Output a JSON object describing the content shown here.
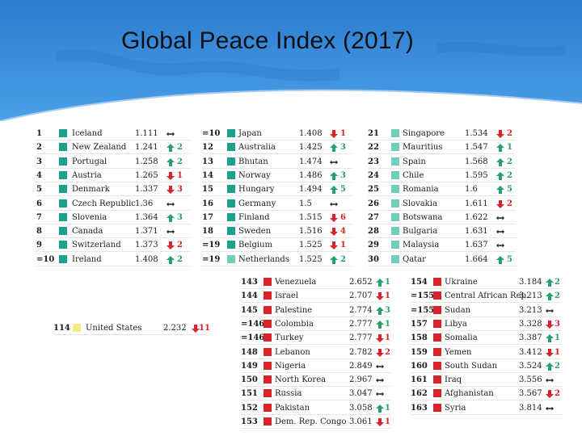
{
  "slide": {
    "title": "Global Peace Index (2017)"
  },
  "colors": {
    "banner": "#2f7fd0",
    "teal_dark": "#1aa08e",
    "teal_light": "#6fcdb9",
    "yellow": "#f7ea80",
    "red": "#d8232a",
    "arrow_up": "#28a06a",
    "arrow_down": "#d8232a",
    "arrow_flat": "#222222"
  },
  "tables": [
    {
      "id": "col1",
      "rows": [
        {
          "rank": "1",
          "country": "Iceland",
          "score": "1.111",
          "dir": "flat",
          "change": "",
          "color": "teal_dark"
        },
        {
          "rank": "2",
          "country": "New Zealand",
          "score": "1.241",
          "dir": "up",
          "change": "2",
          "color": "teal_dark"
        },
        {
          "rank": "3",
          "country": "Portugal",
          "score": "1.258",
          "dir": "up",
          "change": "2",
          "color": "teal_dark"
        },
        {
          "rank": "4",
          "country": "Austria",
          "score": "1.265",
          "dir": "down",
          "change": "1",
          "color": "teal_dark"
        },
        {
          "rank": "5",
          "country": "Denmark",
          "score": "1.337",
          "dir": "down",
          "change": "3",
          "color": "teal_dark"
        },
        {
          "rank": "6",
          "country": "Czech Republic",
          "score": "1.36",
          "dir": "flat",
          "change": "",
          "color": "teal_dark"
        },
        {
          "rank": "7",
          "country": "Slovenia",
          "score": "1.364",
          "dir": "up",
          "change": "3",
          "color": "teal_dark"
        },
        {
          "rank": "8",
          "country": "Canada",
          "score": "1.371",
          "dir": "flat",
          "change": "",
          "color": "teal_dark"
        },
        {
          "rank": "9",
          "country": "Switzerland",
          "score": "1.373",
          "dir": "down",
          "change": "2",
          "color": "teal_dark"
        },
        {
          "rank": "=10",
          "country": "Ireland",
          "score": "1.408",
          "dir": "up",
          "change": "2",
          "color": "teal_dark"
        }
      ]
    },
    {
      "id": "col2",
      "rows": [
        {
          "rank": "=10",
          "country": "Japan",
          "score": "1.408",
          "dir": "down",
          "change": "1",
          "color": "teal_dark"
        },
        {
          "rank": "12",
          "country": "Australia",
          "score": "1.425",
          "dir": "up",
          "change": "3",
          "color": "teal_dark"
        },
        {
          "rank": "13",
          "country": "Bhutan",
          "score": "1.474",
          "dir": "flat",
          "change": "",
          "color": "teal_dark"
        },
        {
          "rank": "14",
          "country": "Norway",
          "score": "1.486",
          "dir": "up",
          "change": "3",
          "color": "teal_dark"
        },
        {
          "rank": "15",
          "country": "Hungary",
          "score": "1.494",
          "dir": "up",
          "change": "5",
          "color": "teal_dark"
        },
        {
          "rank": "16",
          "country": "Germany",
          "score": "1.5",
          "dir": "flat",
          "change": "",
          "color": "teal_dark"
        },
        {
          "rank": "17",
          "country": "Finland",
          "score": "1.515",
          "dir": "down",
          "change": "6",
          "color": "teal_dark"
        },
        {
          "rank": "18",
          "country": "Sweden",
          "score": "1.516",
          "dir": "down",
          "change": "4",
          "color": "teal_dark"
        },
        {
          "rank": "=19",
          "country": "Belgium",
          "score": "1.525",
          "dir": "down",
          "change": "1",
          "color": "teal_dark"
        },
        {
          "rank": "=19",
          "country": "Netherlands",
          "score": "1.525",
          "dir": "up",
          "change": "2",
          "color": "teal_light"
        }
      ]
    },
    {
      "id": "col3",
      "rows": [
        {
          "rank": "21",
          "country": "Singapore",
          "score": "1.534",
          "dir": "down",
          "change": "2",
          "color": "teal_light"
        },
        {
          "rank": "22",
          "country": "Mauritius",
          "score": "1.547",
          "dir": "up",
          "change": "1",
          "color": "teal_light"
        },
        {
          "rank": "23",
          "country": "Spain",
          "score": "1.568",
          "dir": "up",
          "change": "2",
          "color": "teal_light"
        },
        {
          "rank": "24",
          "country": "Chile",
          "score": "1.595",
          "dir": "up",
          "change": "2",
          "color": "teal_light"
        },
        {
          "rank": "25",
          "country": "Romania",
          "score": "1.6",
          "dir": "up",
          "change": "5",
          "color": "teal_light"
        },
        {
          "rank": "26",
          "country": "Slovakia",
          "score": "1.611",
          "dir": "down",
          "change": "2",
          "color": "teal_light"
        },
        {
          "rank": "27",
          "country": "Botswana",
          "score": "1.622",
          "dir": "flat",
          "change": "",
          "color": "teal_light"
        },
        {
          "rank": "28",
          "country": "Bulgaria",
          "score": "1.631",
          "dir": "flat",
          "change": "",
          "color": "teal_light"
        },
        {
          "rank": "29",
          "country": "Malaysia",
          "score": "1.637",
          "dir": "flat",
          "change": "",
          "color": "teal_light"
        },
        {
          "rank": "30",
          "country": "Qatar",
          "score": "1.664",
          "dir": "up",
          "change": "5",
          "color": "teal_light"
        }
      ]
    },
    {
      "id": "us",
      "rows": [
        {
          "rank": "114",
          "country": "United States",
          "score": "2.232",
          "dir": "down",
          "change": "11",
          "color": "yellow"
        }
      ]
    },
    {
      "id": "col4",
      "rows": [
        {
          "rank": "143",
          "country": "Venezuela",
          "score": "2.652",
          "dir": "up",
          "change": "1",
          "color": "red"
        },
        {
          "rank": "144",
          "country": "Israel",
          "score": "2.707",
          "dir": "down",
          "change": "1",
          "color": "red"
        },
        {
          "rank": "145",
          "country": "Palestine",
          "score": "2.774",
          "dir": "up",
          "change": "3",
          "color": "red"
        },
        {
          "rank": "=146",
          "country": "Colombia",
          "score": "2.777",
          "dir": "up",
          "change": "1",
          "color": "red"
        },
        {
          "rank": "=146",
          "country": "Turkey",
          "score": "2.777",
          "dir": "down",
          "change": "1",
          "color": "red"
        },
        {
          "rank": "148",
          "country": "Lebanon",
          "score": "2.782",
          "dir": "down",
          "change": "2",
          "color": "red"
        },
        {
          "rank": "149",
          "country": "Nigeria",
          "score": "2.849",
          "dir": "flat",
          "change": "",
          "color": "red"
        },
        {
          "rank": "150",
          "country": "North Korea",
          "score": "2.967",
          "dir": "flat",
          "change": "",
          "color": "red"
        },
        {
          "rank": "151",
          "country": "Russia",
          "score": "3.047",
          "dir": "flat",
          "change": "",
          "color": "red"
        },
        {
          "rank": "152",
          "country": "Pakistan",
          "score": "3.058",
          "dir": "up",
          "change": "1",
          "color": "red"
        },
        {
          "rank": "153",
          "country": "Dem. Rep. Congo",
          "score": "3.061",
          "dir": "down",
          "change": "1",
          "color": "red"
        }
      ]
    },
    {
      "id": "col5",
      "rows": [
        {
          "rank": "154",
          "country": "Ukraine",
          "score": "3.184",
          "dir": "up",
          "change": "2",
          "color": "red"
        },
        {
          "rank": "=155",
          "country": "Central African Rep.",
          "score": "3.213",
          "dir": "up",
          "change": "2",
          "color": "red"
        },
        {
          "rank": "=155",
          "country": "Sudan",
          "score": "3.213",
          "dir": "flat",
          "change": "",
          "color": "red"
        },
        {
          "rank": "157",
          "country": "Libya",
          "score": "3.328",
          "dir": "down",
          "change": "3",
          "color": "red"
        },
        {
          "rank": "158",
          "country": "Somalia",
          "score": "3.387",
          "dir": "up",
          "change": "1",
          "color": "red"
        },
        {
          "rank": "159",
          "country": "Yemen",
          "score": "3.412",
          "dir": "down",
          "change": "1",
          "color": "red"
        },
        {
          "rank": "160",
          "country": "South Sudan",
          "score": "3.524",
          "dir": "up",
          "change": "2",
          "color": "red"
        },
        {
          "rank": "161",
          "country": "Iraq",
          "score": "3.556",
          "dir": "flat",
          "change": "",
          "color": "red"
        },
        {
          "rank": "162",
          "country": "Afghanistan",
          "score": "3.567",
          "dir": "down",
          "change": "2",
          "color": "red"
        },
        {
          "rank": "163",
          "country": "Syria",
          "score": "3.814",
          "dir": "flat",
          "change": "",
          "color": "red"
        }
      ]
    }
  ]
}
